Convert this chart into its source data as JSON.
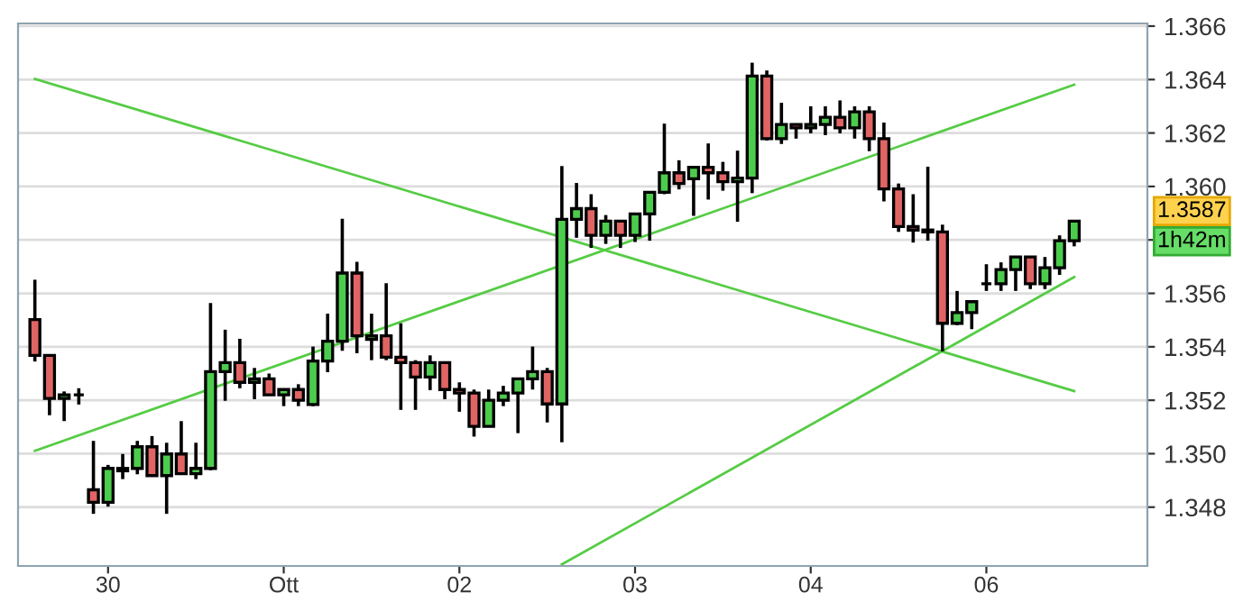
{
  "chart_data": {
    "type": "candlestick",
    "categories": [
      null,
      null,
      null,
      null,
      null,
      "30",
      null,
      null,
      null,
      null,
      null,
      null,
      null,
      null,
      null,
      null,
      null,
      "Ott",
      null,
      null,
      null,
      null,
      null,
      null,
      null,
      null,
      null,
      null,
      null,
      "02",
      null,
      null,
      null,
      null,
      null,
      null,
      null,
      null,
      null,
      null,
      null,
      "03",
      null,
      null,
      null,
      null,
      null,
      null,
      null,
      null,
      null,
      null,
      null,
      "04",
      null,
      null,
      null,
      null,
      null,
      null,
      null,
      null,
      null,
      null,
      null,
      "06",
      null,
      null,
      null,
      null,
      null,
      null
    ],
    "ohlc": [
      [
        1.35502,
        1.35651,
        1.35345,
        1.35368
      ],
      [
        1.35368,
        1.3537,
        1.35144,
        1.35207
      ],
      [
        1.35207,
        1.35233,
        1.35122,
        1.3522
      ],
      [
        1.3522,
        1.35245,
        1.35184,
        1.3522
      ],
      [
        1.34865,
        1.35048,
        1.34775,
        1.34818
      ],
      [
        1.34818,
        1.34958,
        1.34802,
        1.34945
      ],
      [
        1.34936,
        1.34999,
        1.34905,
        1.34945
      ],
      [
        1.34945,
        1.35048,
        1.34923,
        1.35026
      ],
      [
        1.35026,
        1.35066,
        1.34918,
        1.34918
      ],
      [
        1.34918,
        1.35041,
        1.34775,
        1.34999
      ],
      [
        1.34999,
        1.35122,
        1.34925,
        1.34925
      ],
      [
        1.34925,
        1.35041,
        1.34905,
        1.34945
      ],
      [
        1.34945,
        1.35564,
        1.34938,
        1.35307
      ],
      [
        1.35307,
        1.35464,
        1.35198,
        1.35341
      ],
      [
        1.35341,
        1.3543,
        1.35245,
        1.35267
      ],
      [
        1.35267,
        1.35321,
        1.35204,
        1.3528
      ],
      [
        1.3528,
        1.353,
        1.3522,
        1.3522
      ],
      [
        1.3522,
        1.3524,
        1.35178,
        1.3524
      ],
      [
        1.3524,
        1.3526,
        1.35178,
        1.352
      ],
      [
        1.35184,
        1.35401,
        1.35178,
        1.35347
      ],
      [
        1.35347,
        1.35524,
        1.35305,
        1.35421
      ],
      [
        1.35421,
        1.35879,
        1.35385,
        1.35676
      ],
      [
        1.35676,
        1.35718,
        1.35376,
        1.35441
      ],
      [
        1.35428,
        1.35524,
        1.3535,
        1.35441
      ],
      [
        1.35441,
        1.35638,
        1.3535,
        1.35361
      ],
      [
        1.35361,
        1.35488,
        1.35164,
        1.35341
      ],
      [
        1.35341,
        1.3535,
        1.35164,
        1.35287
      ],
      [
        1.35287,
        1.35368,
        1.35238,
        1.35341
      ],
      [
        1.35341,
        1.35341,
        1.35204,
        1.3524
      ],
      [
        1.3524,
        1.35267,
        1.35157,
        1.35227
      ],
      [
        1.35227,
        1.3524,
        1.35064,
        1.35102
      ],
      [
        1.35102,
        1.3524,
        1.35102,
        1.352
      ],
      [
        1.352,
        1.35254,
        1.35178,
        1.35227
      ],
      [
        1.35227,
        1.3528,
        1.35077,
        1.3528
      ],
      [
        1.3528,
        1.35401,
        1.3524,
        1.35307
      ],
      [
        1.35307,
        1.35321,
        1.35117,
        1.35186
      ],
      [
        1.35186,
        1.36076,
        1.35043,
        1.35877
      ],
      [
        1.35877,
        1.36013,
        1.35808,
        1.35917
      ],
      [
        1.35917,
        1.35971,
        1.3577,
        1.35817
      ],
      [
        1.35817,
        1.35893,
        1.35785,
        1.3587
      ],
      [
        1.3587,
        1.3587,
        1.3577,
        1.35817
      ],
      [
        1.35817,
        1.35897,
        1.35792,
        1.35897
      ],
      [
        1.35897,
        1.35978,
        1.35797,
        1.35978
      ],
      [
        1.35978,
        1.36235,
        1.35971,
        1.36051
      ],
      [
        1.36051,
        1.36098,
        1.35989,
        1.36011
      ],
      [
        1.36029,
        1.36072,
        1.3589,
        1.36072
      ],
      [
        1.36072,
        1.36161,
        1.35951,
        1.36051
      ],
      [
        1.36051,
        1.36092,
        1.35984,
        1.36018
      ],
      [
        1.36018,
        1.36134,
        1.35868,
        1.36031
      ],
      [
        1.36031,
        1.36463,
        1.35975,
        1.36413
      ],
      [
        1.36413,
        1.36434,
        1.36172,
        1.36179
      ],
      [
        1.36179,
        1.36313,
        1.36159,
        1.36232
      ],
      [
        1.36232,
        1.36232,
        1.36179,
        1.36219
      ],
      [
        1.36219,
        1.363,
        1.36199,
        1.36232
      ],
      [
        1.36232,
        1.363,
        1.36192,
        1.36259
      ],
      [
        1.36259,
        1.36322,
        1.36199,
        1.36219
      ],
      [
        1.36219,
        1.363,
        1.36179,
        1.36279
      ],
      [
        1.36279,
        1.363,
        1.36132,
        1.36179
      ],
      [
        1.36179,
        1.36239,
        1.35944,
        1.35991
      ],
      [
        1.35991,
        1.36011,
        1.3583,
        1.3585
      ],
      [
        1.3585,
        1.35971,
        1.3579,
        1.35837
      ],
      [
        1.35837,
        1.36074,
        1.35797,
        1.3583
      ],
      [
        1.3583,
        1.35857,
        1.35383,
        1.35488
      ],
      [
        1.35488,
        1.35609,
        1.35481,
        1.35528
      ],
      [
        1.35528,
        1.35569,
        1.35466,
        1.35569
      ],
      [
        1.35636,
        1.35709,
        1.35609,
        1.35636
      ],
      [
        1.35636,
        1.35716,
        1.35609,
        1.35689
      ],
      [
        1.35689,
        1.35736,
        1.35609,
        1.35736
      ],
      [
        1.35736,
        1.35736,
        1.35616,
        1.35636
      ],
      [
        1.35636,
        1.35736,
        1.35616,
        1.35696
      ],
      [
        1.35696,
        1.35817,
        1.35669,
        1.35797
      ],
      [
        1.35797,
        1.3587,
        1.35776,
        1.3587
      ]
    ],
    "colors": [
      "#e06464",
      "#e06464",
      "#4ccc4c",
      "#000000",
      "#e06464",
      "#4ccc4c",
      "#4ccc4c",
      "#4ccc4c",
      "#e06464",
      "#4ccc4c",
      "#e06464",
      "#4ccc4c",
      "#4ccc4c",
      "#4ccc4c",
      "#e06464",
      "#4ccc4c",
      "#e06464",
      "#4ccc4c",
      "#e06464",
      "#4ccc4c",
      "#4ccc4c",
      "#4ccc4c",
      "#e06464",
      "#4ccc4c",
      "#e06464",
      "#e06464",
      "#e06464",
      "#4ccc4c",
      "#e06464",
      "#e06464",
      "#e06464",
      "#4ccc4c",
      "#4ccc4c",
      "#4ccc4c",
      "#4ccc4c",
      "#e06464",
      "#4ccc4c",
      "#4ccc4c",
      "#e06464",
      "#4ccc4c",
      "#e06464",
      "#4ccc4c",
      "#4ccc4c",
      "#4ccc4c",
      "#e06464",
      "#4ccc4c",
      "#e06464",
      "#e06464",
      "#4ccc4c",
      "#4ccc4c",
      "#e06464",
      "#4ccc4c",
      "#e06464",
      "#4ccc4c",
      "#4ccc4c",
      "#e06464",
      "#4ccc4c",
      "#e06464",
      "#e06464",
      "#e06464",
      "#e06464",
      "#e06464",
      "#e06464",
      "#4ccc4c",
      "#4ccc4c",
      "#000000",
      "#4ccc4c",
      "#4ccc4c",
      "#e06464",
      "#4ccc4c",
      "#4ccc4c",
      "#4ccc4c"
    ],
    "series": [
      {
        "type": "line",
        "color": "#55cc44",
        "values": [
          1.36402,
          null,
          null,
          null,
          null,
          null,
          null,
          null,
          null,
          null,
          null,
          null,
          null,
          null,
          null,
          null,
          null,
          null,
          null,
          null,
          null,
          null,
          null,
          null,
          null,
          null,
          null,
          null,
          null,
          null,
          null,
          null,
          null,
          null,
          null,
          null,
          null,
          null,
          null,
          null,
          null,
          null,
          null,
          null,
          null,
          null,
          null,
          null,
          null,
          null,
          null,
          null,
          null,
          null,
          null,
          null,
          null,
          null,
          null,
          null,
          null,
          null,
          null,
          null,
          null,
          null,
          null,
          null,
          null,
          null,
          null,
          1.35234
        ]
      },
      {
        "type": "line",
        "color": "#55cc44",
        "values": [
          1.35011,
          null,
          null,
          null,
          null,
          null,
          null,
          null,
          null,
          null,
          null,
          null,
          null,
          null,
          null,
          null,
          null,
          null,
          null,
          null,
          null,
          null,
          null,
          null,
          null,
          null,
          null,
          null,
          null,
          null,
          null,
          null,
          null,
          null,
          null,
          null,
          null,
          null,
          null,
          null,
          null,
          null,
          null,
          null,
          null,
          null,
          null,
          null,
          null,
          null,
          null,
          null,
          null,
          null,
          null,
          null,
          null,
          null,
          null,
          null,
          null,
          null,
          null,
          null,
          null,
          null,
          null,
          null,
          null,
          null,
          null,
          1.36381
        ]
      },
      {
        "type": "line",
        "color": "#55cc44",
        "values": [
          null,
          null,
          null,
          null,
          null,
          null,
          null,
          null,
          null,
          null,
          null,
          null,
          null,
          null,
          null,
          null,
          null,
          null,
          null,
          null,
          null,
          null,
          null,
          null,
          null,
          null,
          null,
          null,
          null,
          null,
          null,
          null,
          null,
          null,
          null,
          null,
          1.34586,
          null,
          null,
          null,
          null,
          null,
          null,
          null,
          null,
          null,
          null,
          null,
          null,
          null,
          null,
          null,
          null,
          null,
          null,
          null,
          null,
          null,
          null,
          null,
          null,
          null,
          null,
          null,
          null,
          null,
          null,
          null,
          null,
          null,
          null,
          1.35661
        ]
      }
    ],
    "ylim": [
      1.3458,
      1.3661
    ],
    "yticks": [
      1.348,
      {
        "value": 1.35,
        "label": "1.350"
      },
      1.352,
      1.354,
      1.356,
      {
        "value": 1.358,
        "label": null
      },
      {
        "value": 1.36,
        "label": "1.360"
      },
      1.362,
      1.364,
      1.366
    ],
    "grid": "y",
    "annotations": [
      "1.3587",
      "1h42m"
    ]
  }
}
